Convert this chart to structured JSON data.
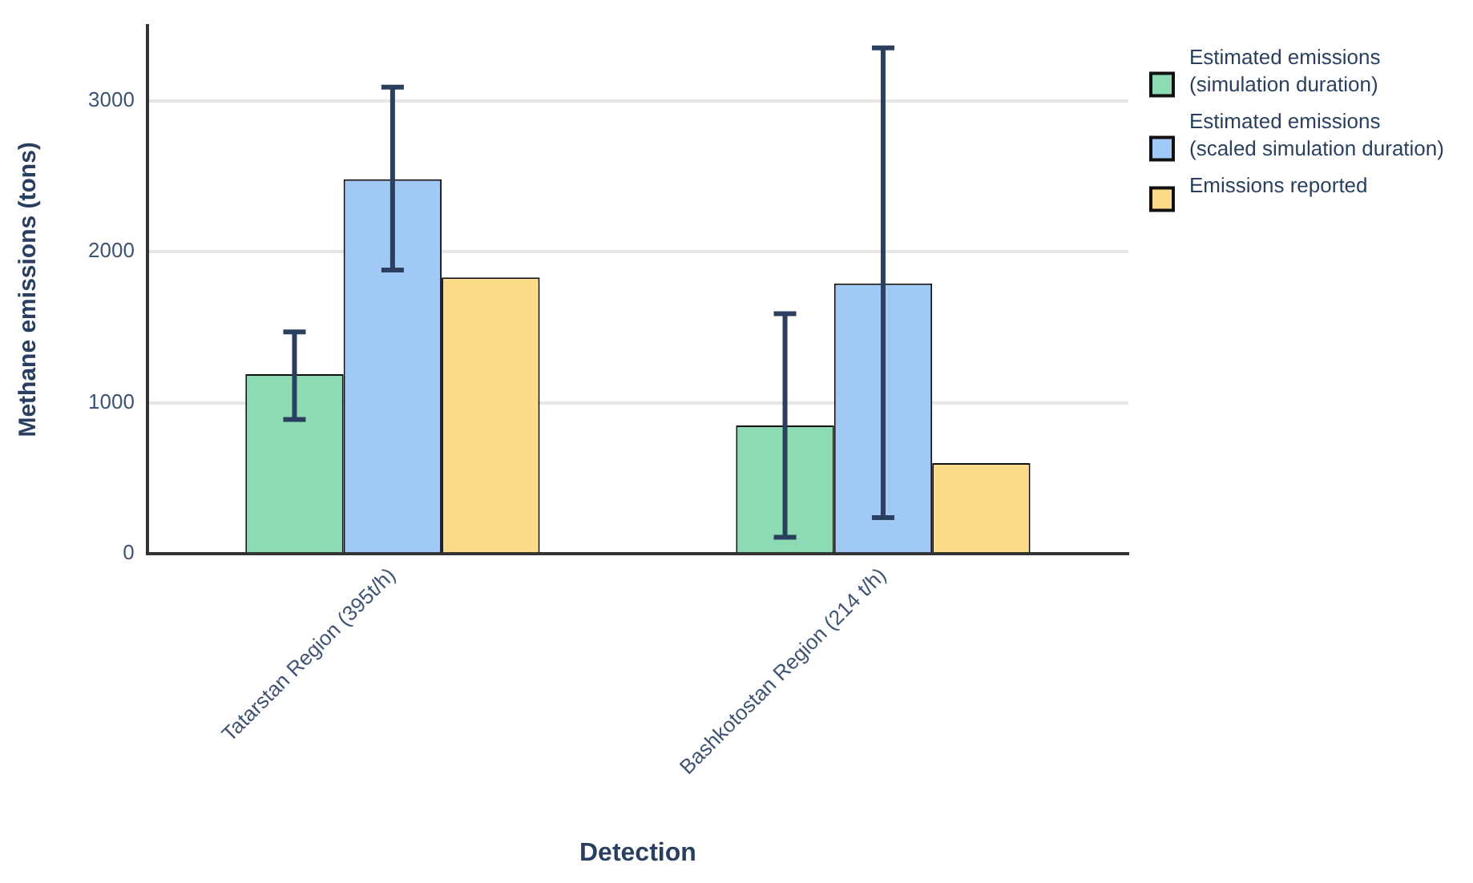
{
  "chart_data": {
    "type": "bar",
    "xlabel": "Detection",
    "ylabel": "Methane emissions (tons)",
    "categories": [
      "Tatarstan Region (395t/h)",
      "Bashkotostan Region (214 t/h)"
    ],
    "series": [
      {
        "name": "Estimated emissions (simulation duration)",
        "color": "#8ddbb4",
        "values": [
          1190,
          850
        ],
        "errors": [
          [
            890,
            1470
          ],
          [
            110,
            1590
          ]
        ]
      },
      {
        "name": "Estimated emissions (scaled simulation duration)",
        "color": "#a0c9f5",
        "values": [
          2480,
          1790
        ],
        "errors": [
          [
            1880,
            3090
          ],
          [
            240,
            3350
          ]
        ]
      },
      {
        "name": "Emissions reported",
        "color": "#fddc89",
        "values": [
          1830,
          600
        ]
      }
    ],
    "ylim": [
      0,
      3500
    ],
    "yticks": [
      0,
      1000,
      2000,
      3000
    ],
    "grid": "y",
    "legend": "right"
  }
}
